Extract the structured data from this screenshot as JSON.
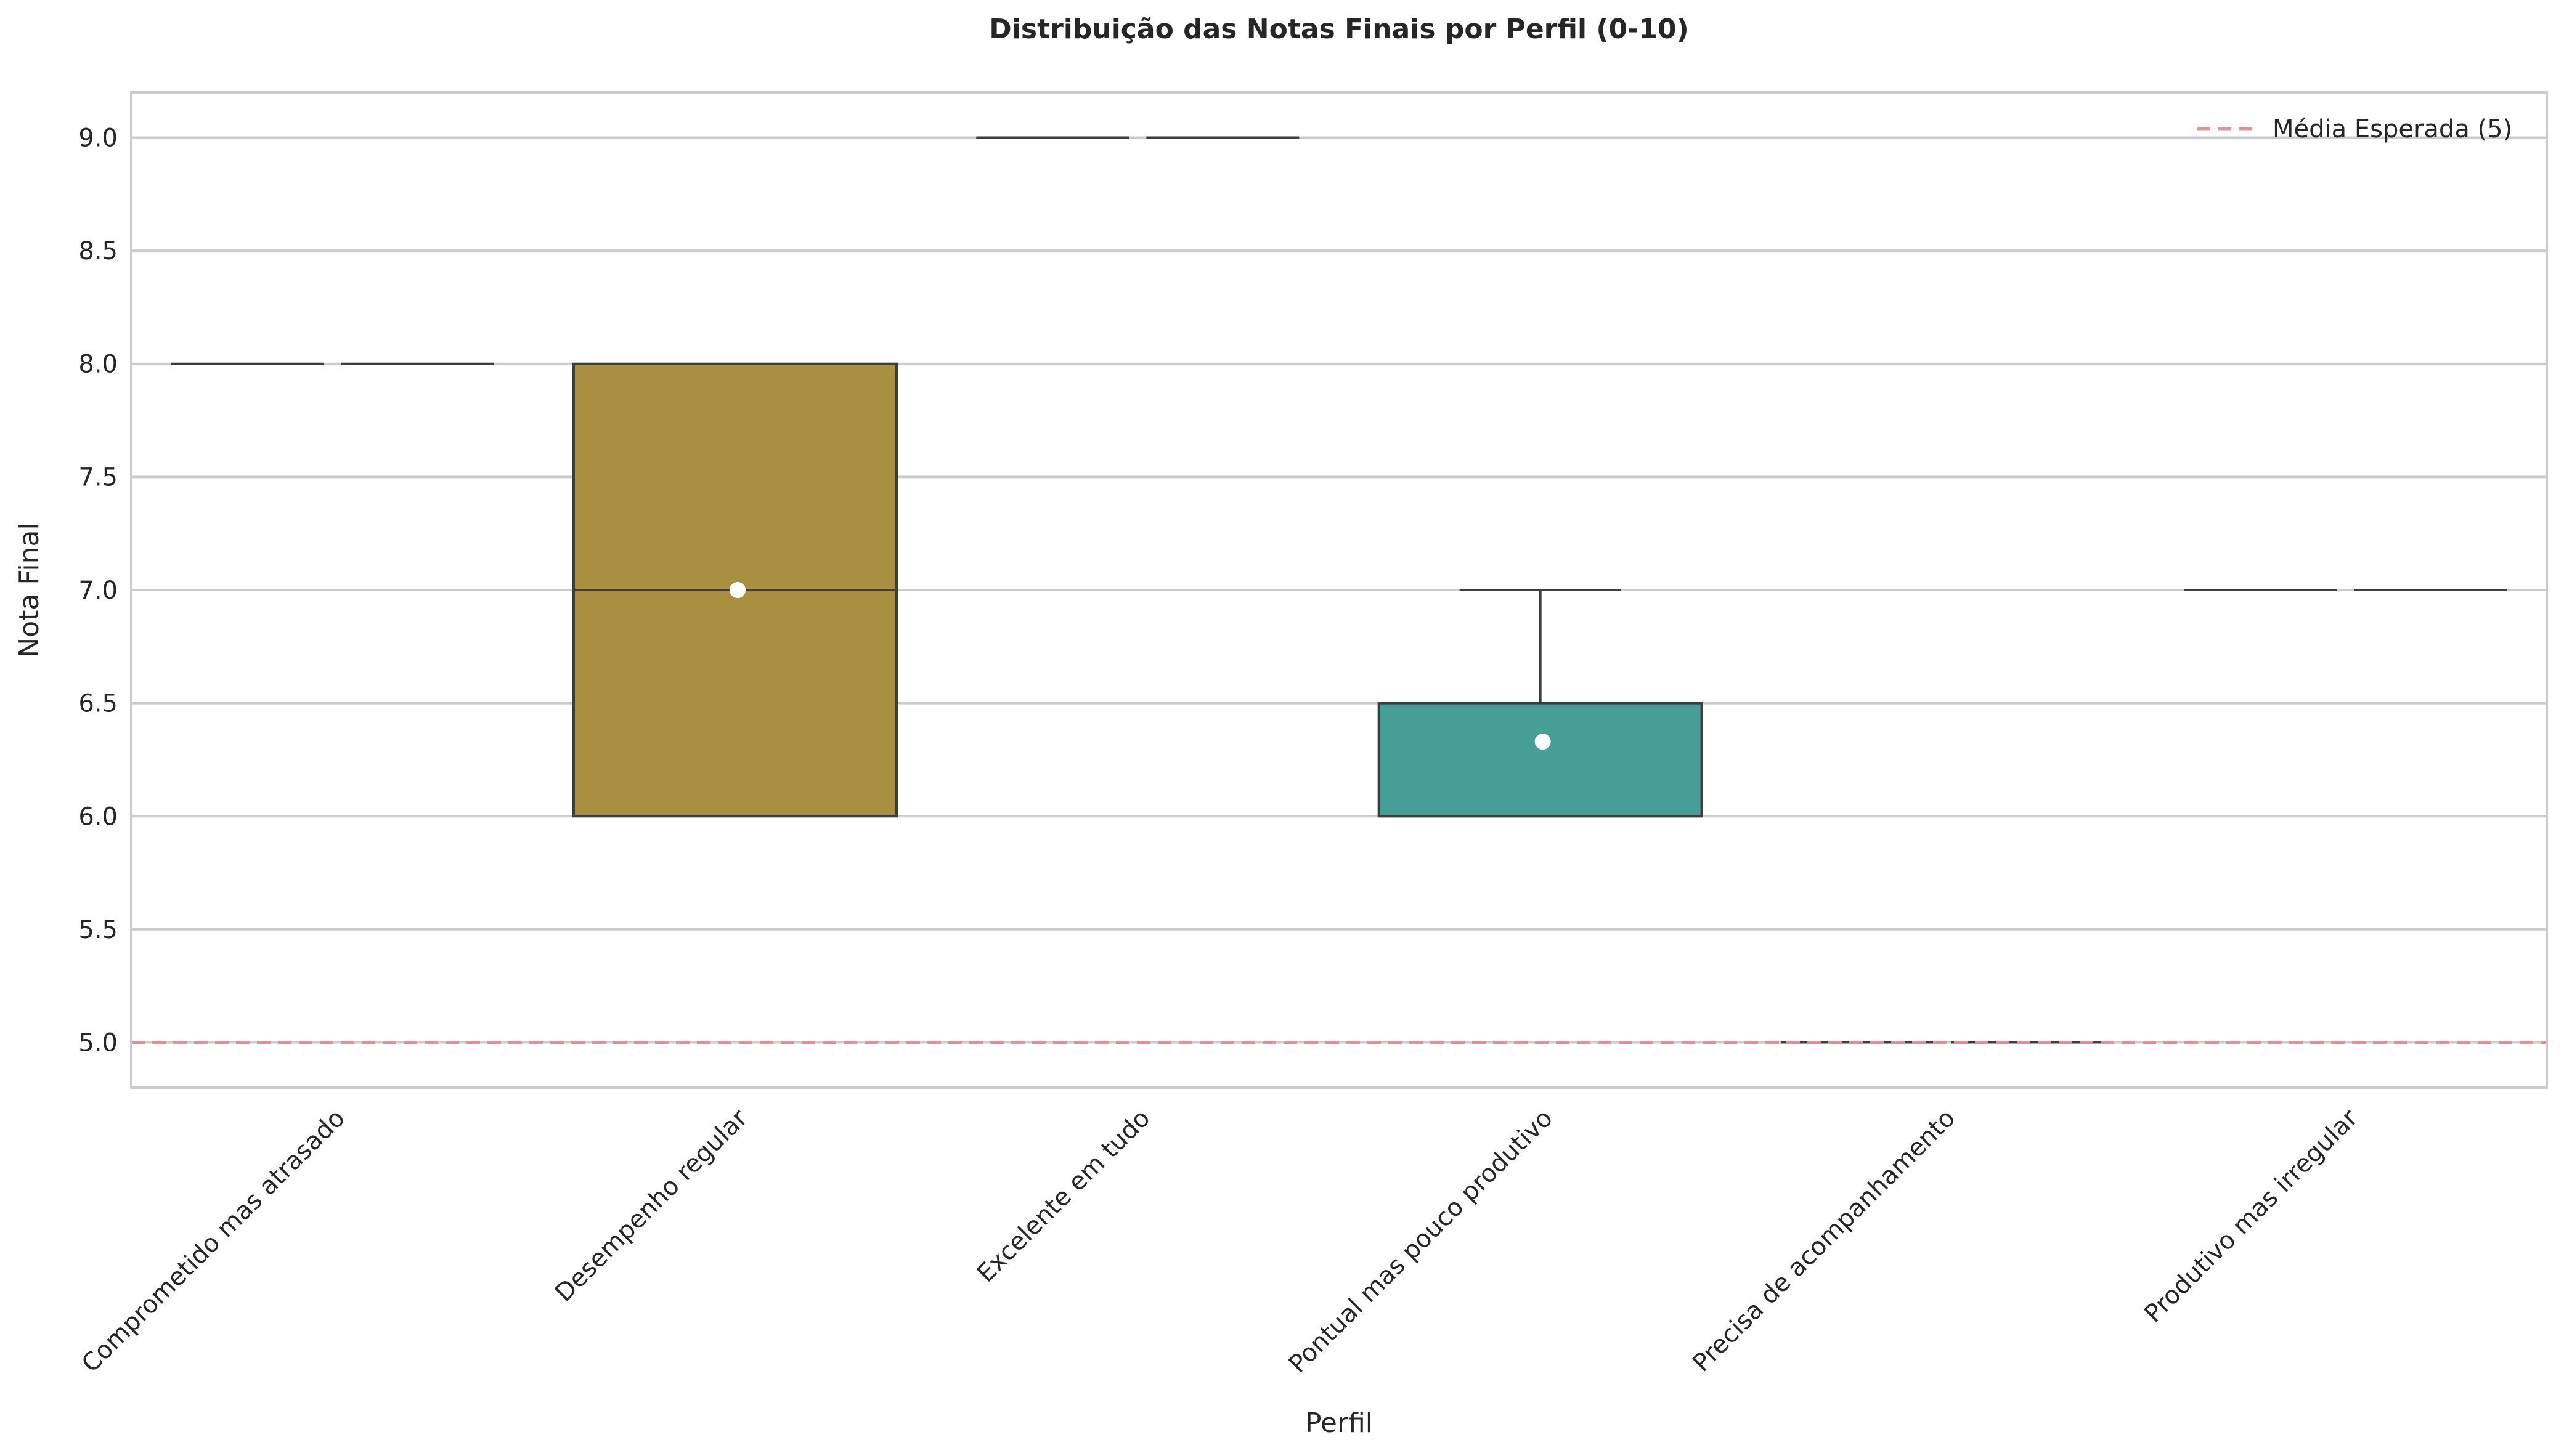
{
  "chart_data": {
    "type": "box",
    "title": "Distribuição das Notas Finais por Perfil (0-10)",
    "xlabel": "Perfil",
    "ylabel": "Nota Final",
    "ylim": [
      4.8,
      9.2
    ],
    "yticks": [
      "5.0",
      "5.5",
      "6.0",
      "6.5",
      "7.0",
      "7.5",
      "8.0",
      "8.5",
      "9.0"
    ],
    "grid": true,
    "legend_position": "top-right",
    "categories": [
      "Comprometido mas atrasado",
      "Desempenho regular",
      "Excelente em tudo",
      "Pontual mas pouco produtivo",
      "Precisa de acompanhamento",
      "Produtivo mas irregular"
    ],
    "boxes": [
      {
        "min": 8,
        "q1": 8,
        "median": 8,
        "q3": 8,
        "max": 8,
        "mean": null,
        "color": "#e0707a"
      },
      {
        "min": 6,
        "q1": 6,
        "median": 7,
        "q3": 8,
        "max": 8,
        "mean": 7.0,
        "color": "#a98f40"
      },
      {
        "min": 9,
        "q1": 9,
        "median": 9,
        "q3": 9,
        "max": 9,
        "mean": null,
        "color": "#5aa546"
      },
      {
        "min": 6,
        "q1": 6,
        "median": 6,
        "q3": 6.5,
        "max": 7,
        "mean": 6.33,
        "color": "#469f97"
      },
      {
        "min": 5,
        "q1": 5,
        "median": 5,
        "q3": 5,
        "max": 5,
        "mean": null,
        "color": "#4f9ad6"
      },
      {
        "min": 7,
        "q1": 7,
        "median": 7,
        "q3": 7,
        "max": 7,
        "mean": null,
        "color": "#c36fd8"
      }
    ],
    "reference_line": {
      "value": 5,
      "label": "Média Esperada (5)",
      "color": "#e09298"
    }
  }
}
